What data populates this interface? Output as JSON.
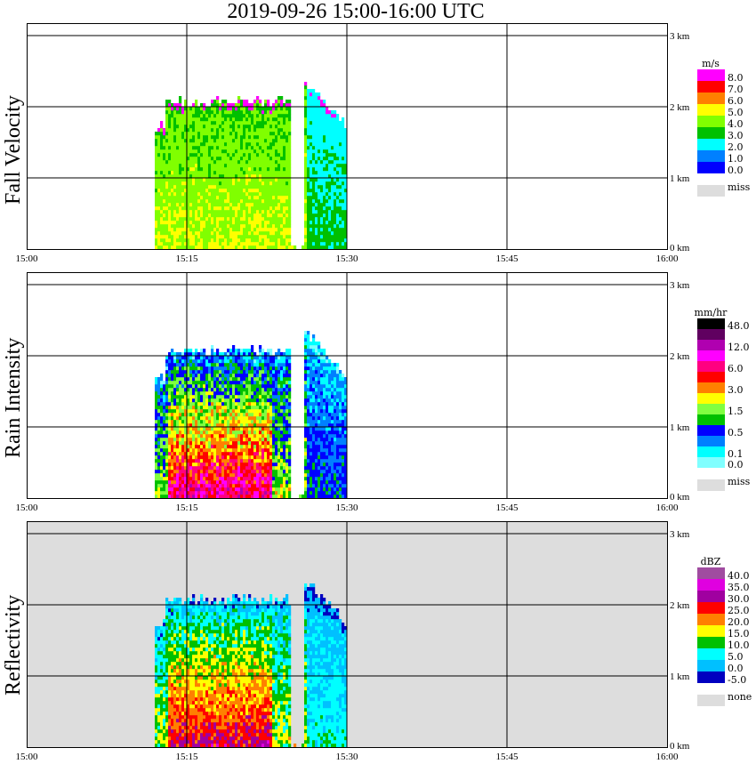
{
  "title": "2019-09-26   15:00-16:00 UTC",
  "chart_data": [
    {
      "type": "heatmap",
      "ylabel": "Fall Velocity",
      "units": "m/s",
      "background": "#ffffff",
      "xticks": [
        "15:00",
        "15:15",
        "15:30",
        "15:45",
        "16:00"
      ],
      "yticks": [
        "0 km",
        "1 km",
        "2 km",
        "3 km"
      ],
      "xlim_min": [
        0,
        60
      ],
      "ylim_km": [
        0,
        3.17
      ],
      "legend": {
        "colors": [
          "#ff00ff",
          "#ff0000",
          "#ff8000",
          "#ffff00",
          "#80ff00",
          "#00c000",
          "#00ffff",
          "#0080ff",
          "#0000ff"
        ],
        "labels": [
          {
            "text": "8.0",
            "at": 1
          },
          {
            "text": "7.0",
            "at": 2
          },
          {
            "text": "6.0",
            "at": 3
          },
          {
            "text": "5.0",
            "at": 4
          },
          {
            "text": "4.0",
            "at": 5
          },
          {
            "text": "3.0",
            "at": 6
          },
          {
            "text": "2.0",
            "at": 7
          },
          {
            "text": "1.0",
            "at": 8
          },
          {
            "text": "0.0",
            "at": 9
          }
        ],
        "miss_label": "miss",
        "miss_color": "#dddddd"
      }
    },
    {
      "type": "heatmap",
      "ylabel": "Rain Intensity",
      "units": "mm/hr",
      "background": "#ffffff",
      "xticks": [
        "15:00",
        "15:15",
        "15:30",
        "15:45",
        "16:00"
      ],
      "yticks": [
        "0 km",
        "1 km",
        "2 km",
        "3 km"
      ],
      "xlim_min": [
        0,
        60
      ],
      "ylim_km": [
        0,
        3.17
      ],
      "legend": {
        "colors": [
          "#000000",
          "#600060",
          "#b000b0",
          "#ff00ff",
          "#ff0080",
          "#ff0000",
          "#ff8000",
          "#ffff00",
          "#80ff40",
          "#00c000",
          "#0000ff",
          "#0080ff",
          "#00ffff",
          "#80ffff"
        ],
        "labels": [
          {
            "text": "48.0",
            "at": 1
          },
          {
            "text": "12.0",
            "at": 3
          },
          {
            "text": "6.0",
            "at": 5
          },
          {
            "text": "3.0",
            "at": 7
          },
          {
            "text": "1.5",
            "at": 9
          },
          {
            "text": "0.5",
            "at": 11
          },
          {
            "text": "0.1",
            "at": 13
          },
          {
            "text": "0.0",
            "at": 14
          }
        ],
        "miss_label": "miss",
        "miss_color": "#dddddd"
      }
    },
    {
      "type": "heatmap",
      "ylabel": "Reflectivity",
      "units": "dBZ",
      "background": "#dddddd",
      "xticks": [
        "15:00",
        "15:15",
        "15:30",
        "15:45",
        "16:00"
      ],
      "yticks": [
        "0 km",
        "1 km",
        "2 km",
        "3 km"
      ],
      "xlim_min": [
        0,
        60
      ],
      "ylim_km": [
        0,
        3.17
      ],
      "legend": {
        "colors": [
          "#a04ca0",
          "#e000e0",
          "#a000a0",
          "#ff0000",
          "#ff8000",
          "#ffff00",
          "#00c000",
          "#00ffff",
          "#00c0ff",
          "#0000c0"
        ],
        "labels": [
          {
            "text": "40.0",
            "at": 1
          },
          {
            "text": "35.0",
            "at": 2
          },
          {
            "text": "30.0",
            "at": 3
          },
          {
            "text": "25.0",
            "at": 4
          },
          {
            "text": "20.0",
            "at": 5
          },
          {
            "text": "15.0",
            "at": 6
          },
          {
            "text": "10.0",
            "at": 7
          },
          {
            "text": "5.0",
            "at": 8
          },
          {
            "text": "0.0",
            "at": 9
          },
          {
            "text": "-5.0",
            "at": 10
          }
        ],
        "miss_label": "none",
        "miss_color": "#dddddd"
      }
    }
  ],
  "echoes": [
    {
      "start_min": 12,
      "end_min": 24.5,
      "top_km": 2.05
    },
    {
      "start_min": 26,
      "end_min": 30,
      "top_km": 2.3
    }
  ]
}
